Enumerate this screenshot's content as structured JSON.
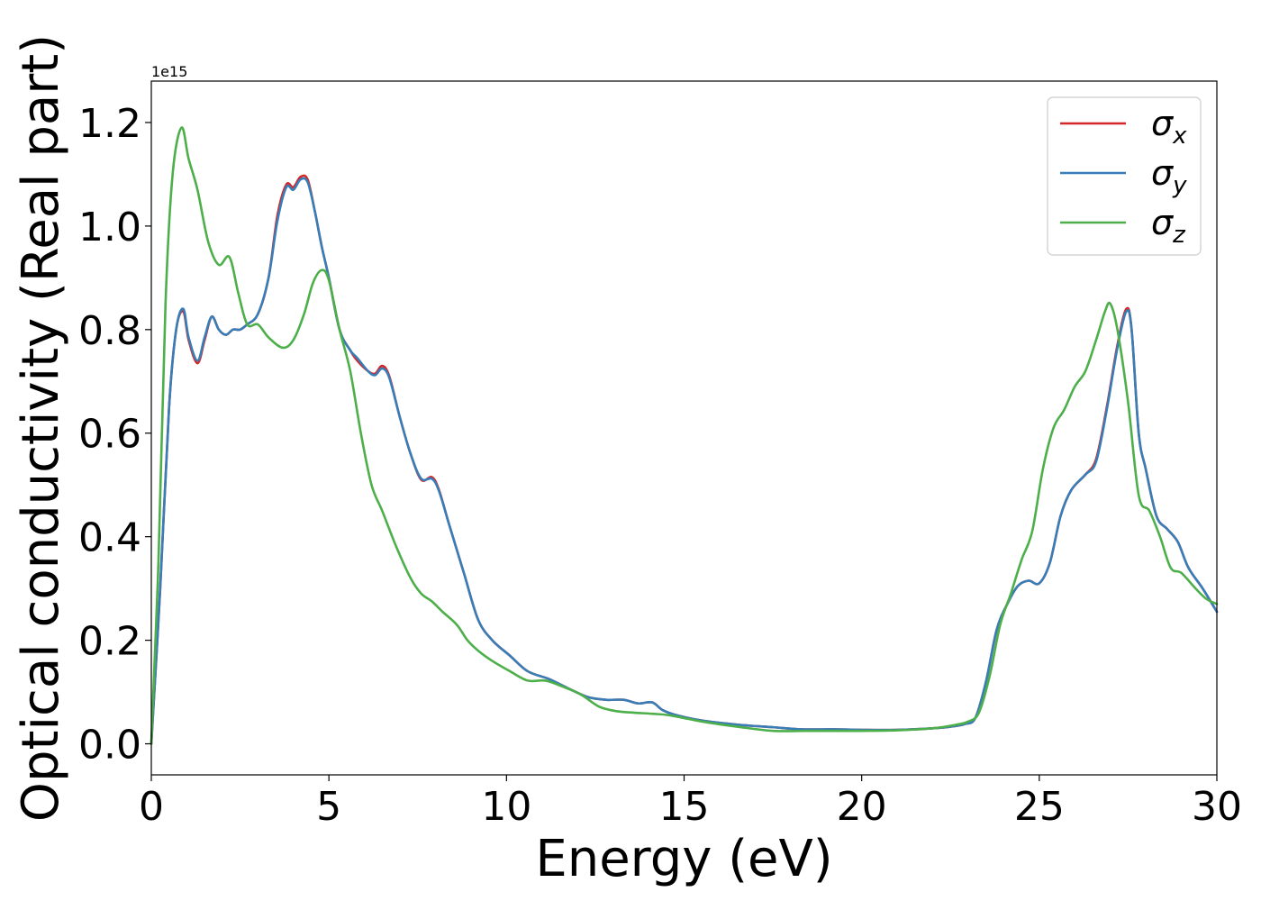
{
  "chart_data": {
    "type": "line",
    "xlabel": "Energy (eV)",
    "ylabel": "Optical conductivity (Real part)",
    "y_offset_label": "1e15",
    "xlim": [
      0,
      30
    ],
    "ylim": [
      -0.06,
      1.28
    ],
    "y_scale_factor": 1000000000000000.0,
    "xticks": [
      0,
      5,
      10,
      15,
      20,
      25,
      30
    ],
    "xtick_labels": [
      "0",
      "5",
      "10",
      "15",
      "20",
      "25",
      "30"
    ],
    "yticks": [
      0.0,
      0.2,
      0.4,
      0.6,
      0.8,
      1.0,
      1.2
    ],
    "ytick_labels": [
      "0.0",
      "0.2",
      "0.4",
      "0.6",
      "0.8",
      "1.0",
      "1.2"
    ],
    "grid": false,
    "legend": "top-right",
    "series": [
      {
        "name": "σx",
        "name_base": "σ",
        "name_sub": "x",
        "color": "#d62728",
        "x": [
          0,
          0.25,
          0.5,
          0.7,
          0.9,
          1.05,
          1.3,
          1.5,
          1.7,
          1.9,
          2.1,
          2.3,
          2.5,
          2.7,
          3.0,
          3.3,
          3.55,
          3.8,
          4.0,
          4.2,
          4.4,
          4.6,
          4.8,
          5.0,
          5.3,
          5.6,
          5.8,
          6.1,
          6.3,
          6.5,
          6.7,
          7.0,
          7.3,
          7.6,
          7.9,
          8.1,
          8.4,
          8.8,
          9.2,
          9.6,
          10.1,
          10.6,
          11.2,
          11.8,
          12.3,
          12.8,
          13.3,
          13.7,
          14.1,
          14.4,
          14.8,
          15.5,
          16.5,
          17.5,
          18.3,
          19.2,
          20.0,
          21.0,
          22.0,
          22.5,
          22.9,
          23.2,
          23.5,
          23.8,
          24.1,
          24.4,
          24.7,
          25.0,
          25.3,
          25.6,
          25.9,
          26.3,
          26.6,
          26.9,
          27.2,
          27.45,
          27.6,
          27.8,
          28.0,
          28.3,
          28.6,
          28.9,
          29.2,
          29.6,
          30.0
        ],
        "y": [
          0.0,
          0.3,
          0.65,
          0.8,
          0.835,
          0.78,
          0.735,
          0.78,
          0.825,
          0.8,
          0.79,
          0.8,
          0.8,
          0.81,
          0.83,
          0.9,
          1.02,
          1.08,
          1.075,
          1.095,
          1.09,
          1.03,
          0.96,
          0.9,
          0.8,
          0.76,
          0.74,
          0.72,
          0.715,
          0.73,
          0.71,
          0.63,
          0.56,
          0.51,
          0.515,
          0.49,
          0.42,
          0.33,
          0.24,
          0.2,
          0.17,
          0.14,
          0.125,
          0.105,
          0.09,
          0.085,
          0.085,
          0.078,
          0.08,
          0.065,
          0.055,
          0.045,
          0.037,
          0.032,
          0.028,
          0.028,
          0.027,
          0.027,
          0.03,
          0.033,
          0.038,
          0.05,
          0.12,
          0.22,
          0.27,
          0.305,
          0.315,
          0.31,
          0.35,
          0.44,
          0.49,
          0.52,
          0.55,
          0.65,
          0.77,
          0.84,
          0.8,
          0.6,
          0.53,
          0.44,
          0.415,
          0.39,
          0.34,
          0.3,
          0.255
        ]
      },
      {
        "name": "σy",
        "name_base": "σ",
        "name_sub": "y",
        "color": "#377eb8",
        "x": [
          0,
          0.25,
          0.5,
          0.7,
          0.9,
          1.05,
          1.3,
          1.5,
          1.7,
          1.9,
          2.1,
          2.3,
          2.5,
          2.7,
          3.0,
          3.3,
          3.55,
          3.8,
          4.0,
          4.2,
          4.4,
          4.6,
          4.8,
          5.0,
          5.3,
          5.6,
          5.8,
          6.1,
          6.3,
          6.5,
          6.7,
          7.0,
          7.3,
          7.6,
          7.9,
          8.1,
          8.4,
          8.8,
          9.2,
          9.6,
          10.1,
          10.6,
          11.2,
          11.8,
          12.3,
          12.8,
          13.3,
          13.7,
          14.1,
          14.4,
          14.8,
          15.5,
          16.5,
          17.5,
          18.3,
          19.2,
          20.0,
          21.0,
          22.0,
          22.5,
          22.9,
          23.2,
          23.5,
          23.8,
          24.1,
          24.4,
          24.7,
          25.0,
          25.3,
          25.6,
          25.9,
          26.3,
          26.6,
          26.9,
          27.2,
          27.45,
          27.6,
          27.8,
          28.0,
          28.3,
          28.6,
          28.9,
          29.2,
          29.6,
          30.0
        ],
        "y": [
          0.0,
          0.3,
          0.65,
          0.8,
          0.84,
          0.785,
          0.74,
          0.785,
          0.825,
          0.8,
          0.79,
          0.8,
          0.8,
          0.81,
          0.83,
          0.9,
          1.01,
          1.075,
          1.07,
          1.09,
          1.085,
          1.03,
          0.96,
          0.9,
          0.8,
          0.76,
          0.745,
          0.72,
          0.712,
          0.725,
          0.707,
          0.63,
          0.56,
          0.512,
          0.512,
          0.488,
          0.42,
          0.33,
          0.24,
          0.2,
          0.17,
          0.14,
          0.125,
          0.105,
          0.09,
          0.085,
          0.085,
          0.078,
          0.08,
          0.065,
          0.055,
          0.045,
          0.037,
          0.032,
          0.028,
          0.028,
          0.027,
          0.027,
          0.03,
          0.033,
          0.038,
          0.05,
          0.12,
          0.22,
          0.27,
          0.305,
          0.315,
          0.31,
          0.35,
          0.44,
          0.49,
          0.52,
          0.545,
          0.645,
          0.765,
          0.835,
          0.8,
          0.6,
          0.53,
          0.44,
          0.415,
          0.39,
          0.34,
          0.3,
          0.255
        ]
      },
      {
        "name": "σz",
        "name_base": "σ",
        "name_sub": "z",
        "color": "#4daf4a",
        "x": [
          0,
          0.2,
          0.4,
          0.6,
          0.85,
          1.05,
          1.3,
          1.6,
          1.9,
          2.2,
          2.45,
          2.7,
          3.0,
          3.3,
          3.7,
          4.0,
          4.3,
          4.55,
          4.8,
          5.0,
          5.3,
          5.6,
          5.9,
          6.2,
          6.5,
          6.9,
          7.3,
          7.6,
          7.9,
          8.2,
          8.6,
          8.9,
          9.2,
          9.6,
          10.1,
          10.6,
          11.1,
          11.6,
          12.1,
          12.6,
          13.1,
          13.6,
          14.1,
          14.6,
          15.5,
          16.5,
          17.5,
          18.5,
          19.5,
          20.0,
          21.0,
          22.0,
          22.6,
          23.0,
          23.3,
          23.6,
          23.9,
          24.2,
          24.5,
          24.8,
          25.1,
          25.4,
          25.7,
          26.0,
          26.3,
          26.6,
          26.85,
          27.0,
          27.2,
          27.5,
          27.8,
          28.1,
          28.4,
          28.7,
          29.0,
          29.4,
          29.7,
          30.0
        ],
        "y": [
          0.0,
          0.35,
          0.85,
          1.1,
          1.19,
          1.13,
          1.07,
          0.97,
          0.925,
          0.94,
          0.87,
          0.81,
          0.81,
          0.785,
          0.765,
          0.78,
          0.83,
          0.89,
          0.915,
          0.895,
          0.8,
          0.72,
          0.6,
          0.5,
          0.45,
          0.38,
          0.32,
          0.29,
          0.275,
          0.255,
          0.23,
          0.2,
          0.18,
          0.16,
          0.14,
          0.122,
          0.122,
          0.11,
          0.095,
          0.072,
          0.063,
          0.06,
          0.058,
          0.055,
          0.043,
          0.033,
          0.025,
          0.025,
          0.025,
          0.025,
          0.026,
          0.03,
          0.036,
          0.043,
          0.06,
          0.13,
          0.23,
          0.29,
          0.355,
          0.41,
          0.53,
          0.61,
          0.645,
          0.69,
          0.72,
          0.78,
          0.835,
          0.85,
          0.8,
          0.66,
          0.48,
          0.45,
          0.4,
          0.34,
          0.33,
          0.3,
          0.28,
          0.27
        ]
      }
    ]
  }
}
